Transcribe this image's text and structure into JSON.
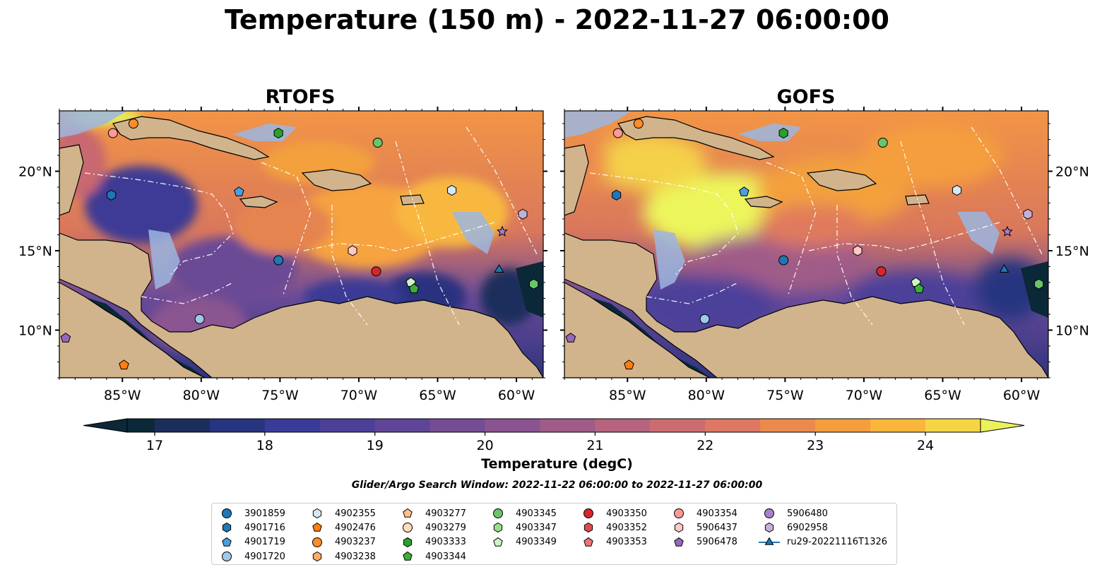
{
  "title": "Temperature (150 m) - 2022-11-27 06:00:00",
  "panels": [
    {
      "title": "RTOFS"
    },
    {
      "title": "GOFS"
    }
  ],
  "axes": {
    "x_ticks": [
      "85°W",
      "80°W",
      "75°W",
      "70°W",
      "65°W",
      "60°W"
    ],
    "x_values": [
      -85,
      -80,
      -75,
      -70,
      -65,
      -60
    ],
    "y_ticks": [
      "20°N",
      "15°N",
      "10°N"
    ],
    "y_values": [
      20,
      15,
      10
    ],
    "lon_range": [
      -89,
      -58.3
    ],
    "lat_range": [
      7,
      23.8
    ]
  },
  "colorbar": {
    "label": "Temperature (degC)",
    "ticks": [
      "17",
      "18",
      "19",
      "20",
      "21",
      "22",
      "23",
      "24"
    ],
    "tick_values": [
      17,
      18,
      19,
      20,
      21,
      22,
      23,
      24
    ],
    "range": [
      16.75,
      24.5
    ],
    "levels": [
      17,
      17.5,
      18,
      18.5,
      19,
      19.5,
      20,
      20.5,
      21,
      21.5,
      22,
      22.5,
      23,
      23.5,
      24,
      24.5
    ],
    "colors": [
      "#0b2838",
      "#1b2d5b",
      "#27347f",
      "#3a3a98",
      "#4b3f9a",
      "#5e4597",
      "#744c93",
      "#8a5490",
      "#a05c88",
      "#b6647f",
      "#cb6d70",
      "#dd7862",
      "#ec8a4d",
      "#f59e3e",
      "#f9b63b",
      "#f6d545",
      "#e9f25b"
    ],
    "extend": "both"
  },
  "search_window": "Glider/Argo Search Window: 2022-11-22 06:00:00 to 2022-11-27 06:00:00",
  "legend": [
    {
      "label": "3901859",
      "marker": "circle",
      "color": "#1f77b4"
    },
    {
      "label": "4901716",
      "marker": "hexagon",
      "color": "#1f77b4"
    },
    {
      "label": "4901719",
      "marker": "pentagon",
      "color": "#4a9fe0"
    },
    {
      "label": "4901720",
      "marker": "circle",
      "color": "#9ec9ea"
    },
    {
      "label": "4902355",
      "marker": "hexagon",
      "color": "#d4e8f8"
    },
    {
      "label": "4902476",
      "marker": "pentagon",
      "color": "#ff7f0e"
    },
    {
      "label": "4903237",
      "marker": "circle",
      "color": "#ff8c26"
    },
    {
      "label": "4903238",
      "marker": "hexagon",
      "color": "#ffab63"
    },
    {
      "label": "4903277",
      "marker": "pentagon",
      "color": "#ffc08a"
    },
    {
      "label": "4903279",
      "marker": "circle",
      "color": "#ffdcb8"
    },
    {
      "label": "4903333",
      "marker": "hexagon",
      "color": "#2ca02c"
    },
    {
      "label": "4903344",
      "marker": "pentagon",
      "color": "#3ab03a"
    },
    {
      "label": "4903345",
      "marker": "circle",
      "color": "#68c668"
    },
    {
      "label": "4903347",
      "marker": "hexagon",
      "color": "#98df8a"
    },
    {
      "label": "4903349",
      "marker": "pentagon",
      "color": "#ccf5c4"
    },
    {
      "label": "4903350",
      "marker": "circle",
      "color": "#d62728"
    },
    {
      "label": "4903352",
      "marker": "hexagon",
      "color": "#e04b4b"
    },
    {
      "label": "4903353",
      "marker": "pentagon",
      "color": "#ef7575"
    },
    {
      "label": "4903354",
      "marker": "circle",
      "color": "#ff9896"
    },
    {
      "label": "5906437",
      "marker": "hexagon",
      "color": "#ffc8c6"
    },
    {
      "label": "5906478",
      "marker": "pentagon",
      "color": "#9467bd"
    },
    {
      "label": "5906480",
      "marker": "circle",
      "color": "#a97fd0"
    },
    {
      "label": "6902958",
      "marker": "hexagon",
      "color": "#c5b0d5"
    },
    {
      "label": "ru29-20221116T1326",
      "marker": "triangle-line",
      "color": "#1f77b4"
    }
  ],
  "floats": [
    {
      "lon": -85.6,
      "lat": 22.4,
      "color": "#ff9896",
      "marker": "circle"
    },
    {
      "lon": -84.3,
      "lat": 23.0,
      "color": "#ff8c26",
      "marker": "circle"
    },
    {
      "lon": -85.7,
      "lat": 18.5,
      "color": "#1f77b4",
      "marker": "hexagon"
    },
    {
      "lon": -75.1,
      "lat": 22.4,
      "color": "#2ca02c",
      "marker": "hexagon"
    },
    {
      "lon": -68.8,
      "lat": 21.8,
      "color": "#68c668",
      "marker": "circle"
    },
    {
      "lon": -77.6,
      "lat": 18.7,
      "color": "#4a9fe0",
      "marker": "pentagon"
    },
    {
      "lon": -64.1,
      "lat": 18.8,
      "color": "#d4e8f8",
      "marker": "hexagon"
    },
    {
      "lon": -59.6,
      "lat": 17.3,
      "color": "#c5b0d5",
      "marker": "hexagon"
    },
    {
      "lon": -60.9,
      "lat": 16.2,
      "color": "#a97fd0",
      "marker": "star"
    },
    {
      "lon": -70.4,
      "lat": 15.0,
      "color": "#ffc8c6",
      "marker": "hexagon"
    },
    {
      "lon": -75.1,
      "lat": 14.4,
      "color": "#1f77b4",
      "marker": "circle"
    },
    {
      "lon": -68.9,
      "lat": 13.7,
      "color": "#d62728",
      "marker": "circle"
    },
    {
      "lon": -61.1,
      "lat": 13.8,
      "color": "#1f77b4",
      "marker": "triangle"
    },
    {
      "lon": -66.7,
      "lat": 13.0,
      "color": "#ccf5c4",
      "marker": "pentagon"
    },
    {
      "lon": -66.5,
      "lat": 12.6,
      "color": "#3ab03a",
      "marker": "pentagon"
    },
    {
      "lon": -58.9,
      "lat": 12.9,
      "color": "#68c668",
      "marker": "hexagon"
    },
    {
      "lon": -80.1,
      "lat": 10.7,
      "color": "#9ec9ea",
      "marker": "circle"
    },
    {
      "lon": -88.6,
      "lat": 9.5,
      "color": "#9467bd",
      "marker": "pentagon"
    },
    {
      "lon": -84.9,
      "lat": 7.8,
      "color": "#ff7f0e",
      "marker": "pentagon"
    }
  ]
}
